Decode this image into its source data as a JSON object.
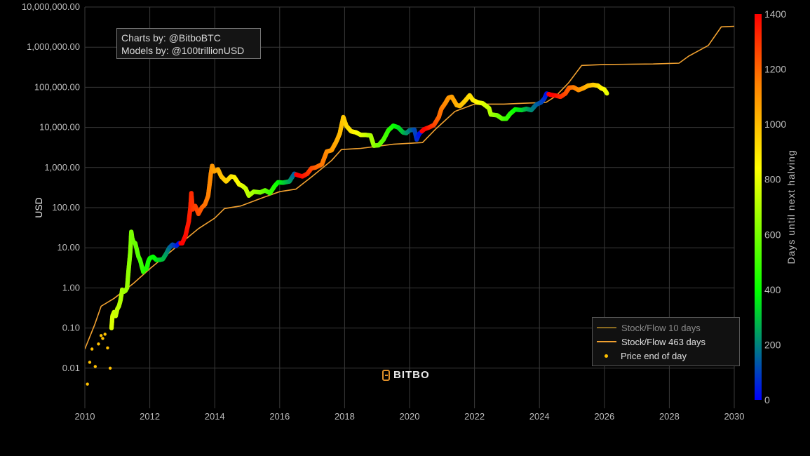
{
  "chart_data": {
    "type": "scatter",
    "title": "",
    "xlabel": "",
    "ylabel": "USD",
    "xlim": [
      2010,
      2030
    ],
    "ylim": [
      0.001,
      10000000
    ],
    "yscale": "log",
    "grid": true,
    "x_ticks": [
      "2010",
      "2012",
      "2014",
      "2016",
      "2018",
      "2020",
      "2022",
      "2024",
      "2026",
      "2028",
      "2030"
    ],
    "y_ticks": [
      "10,000,000.00",
      "1,000,000.00",
      "100,000.00",
      "10,000.00",
      "1,000.00",
      "100.00",
      "10.00",
      "1.00",
      "0.10",
      "0.01"
    ],
    "colorbar": {
      "title": "Days until next halving",
      "range": [
        0,
        1400
      ],
      "ticks": [
        "0",
        "200",
        "400",
        "600",
        "800",
        "1000",
        "1200",
        "1400"
      ],
      "colorscale": [
        "#0000ff",
        "#00ff00",
        "#ffff00",
        "#ff8000",
        "#ff0000"
      ]
    },
    "legend_position": "bottom-right",
    "annotations": [
      "Charts by: @BitboBTC",
      "Models by: @100trillionUSD"
    ],
    "watermark": "BITBO",
    "series": [
      {
        "name": "Stock/Flow 10 days",
        "color": "#8a6a20",
        "kind": "line",
        "points": [
          [
            2010.0,
            0.03
          ],
          [
            2010.3,
            0.12
          ],
          [
            2010.5,
            0.35
          ],
          [
            2010.9,
            0.55
          ],
          [
            2011.5,
            1.3
          ],
          [
            2012.0,
            3.0
          ],
          [
            2012.6,
            7.5
          ],
          [
            2012.9,
            12
          ],
          [
            2013.5,
            30
          ],
          [
            2014.0,
            55
          ],
          [
            2014.3,
            95
          ],
          [
            2014.8,
            110
          ],
          [
            2015.5,
            180
          ],
          [
            2016.0,
            250
          ],
          [
            2016.5,
            290
          ],
          [
            2017.0,
            600
          ],
          [
            2017.6,
            1500
          ],
          [
            2017.9,
            2800
          ],
          [
            2018.5,
            3000
          ],
          [
            2019.5,
            3800
          ],
          [
            2020.4,
            4200
          ],
          [
            2020.8,
            9000
          ],
          [
            2021.4,
            25000
          ],
          [
            2022.0,
            38000
          ],
          [
            2022.9,
            38000
          ],
          [
            2023.5,
            40000
          ],
          [
            2024.2,
            42000
          ],
          [
            2024.5,
            60000
          ],
          [
            2024.9,
            130000
          ],
          [
            2025.3,
            350000
          ],
          [
            2026.0,
            370000
          ],
          [
            2027.5,
            380000
          ],
          [
            2028.3,
            400000
          ],
          [
            2028.6,
            600000
          ],
          [
            2029.2,
            1100000
          ],
          [
            2029.6,
            3200000
          ],
          [
            2030.0,
            3300000
          ]
        ]
      },
      {
        "name": "Stock/Flow 463 days",
        "color": "#f0a030",
        "kind": "line",
        "points": [
          [
            2010.0,
            0.03
          ],
          [
            2010.3,
            0.12
          ],
          [
            2010.5,
            0.35
          ],
          [
            2010.9,
            0.55
          ],
          [
            2011.5,
            1.3
          ],
          [
            2012.0,
            3.0
          ],
          [
            2012.6,
            7.5
          ],
          [
            2012.9,
            12
          ],
          [
            2013.5,
            30
          ],
          [
            2014.0,
            55
          ],
          [
            2014.3,
            95
          ],
          [
            2014.8,
            110
          ],
          [
            2015.5,
            180
          ],
          [
            2016.0,
            250
          ],
          [
            2016.5,
            290
          ],
          [
            2017.0,
            600
          ],
          [
            2017.6,
            1500
          ],
          [
            2017.9,
            2800
          ],
          [
            2018.5,
            3000
          ],
          [
            2019.5,
            3800
          ],
          [
            2020.4,
            4200
          ],
          [
            2020.8,
            9000
          ],
          [
            2021.4,
            25000
          ],
          [
            2022.0,
            38000
          ],
          [
            2022.9,
            38000
          ],
          [
            2023.5,
            40000
          ],
          [
            2024.2,
            42000
          ],
          [
            2024.5,
            60000
          ],
          [
            2024.9,
            130000
          ],
          [
            2025.3,
            350000
          ],
          [
            2026.0,
            370000
          ],
          [
            2027.5,
            380000
          ],
          [
            2028.3,
            400000
          ],
          [
            2028.6,
            600000
          ],
          [
            2029.2,
            1100000
          ],
          [
            2029.6,
            3200000
          ],
          [
            2030.0,
            3300000
          ]
        ]
      },
      {
        "name": "Price end of day",
        "color": "#ffc000",
        "kind": "scatter",
        "points": [
          [
            2010.08,
            0.004,
            900
          ],
          [
            2010.15,
            0.014,
            880
          ],
          [
            2010.22,
            0.03,
            870
          ],
          [
            2010.32,
            0.011,
            860
          ],
          [
            2010.42,
            0.04,
            850
          ],
          [
            2010.5,
            0.065,
            840
          ],
          [
            2010.55,
            0.055,
            830
          ],
          [
            2010.62,
            0.07,
            820
          ],
          [
            2010.7,
            0.032,
            810
          ],
          [
            2010.78,
            0.01,
            800
          ],
          [
            2010.82,
            0.1,
            780
          ],
          [
            2010.85,
            0.2,
            770
          ],
          [
            2010.9,
            0.25,
            760
          ],
          [
            2010.95,
            0.2,
            750
          ],
          [
            2011.0,
            0.3,
            740
          ],
          [
            2011.05,
            0.35,
            720
          ],
          [
            2011.1,
            0.5,
            700
          ],
          [
            2011.15,
            0.9,
            690
          ],
          [
            2011.2,
            0.8,
            680
          ],
          [
            2011.25,
            0.85,
            670
          ],
          [
            2011.3,
            1.0,
            660
          ],
          [
            2011.35,
            3.0,
            640
          ],
          [
            2011.4,
            8.0,
            620
          ],
          [
            2011.43,
            25.0,
            610
          ],
          [
            2011.46,
            17.0,
            600
          ],
          [
            2011.5,
            14.0,
            590
          ],
          [
            2011.55,
            13.0,
            580
          ],
          [
            2011.6,
            9.0,
            560
          ],
          [
            2011.65,
            6.0,
            540
          ],
          [
            2011.7,
            5.0,
            520
          ],
          [
            2011.75,
            3.5,
            500
          ],
          [
            2011.8,
            2.5,
            480
          ],
          [
            2011.85,
            3.0,
            460
          ],
          [
            2011.9,
            3.0,
            440
          ],
          [
            2011.95,
            4.5,
            430
          ],
          [
            2012.0,
            5.5,
            420
          ],
          [
            2012.1,
            6.0,
            400
          ],
          [
            2012.2,
            5.0,
            380
          ],
          [
            2012.3,
            5.0,
            340
          ],
          [
            2012.4,
            5.2,
            300
          ],
          [
            2012.5,
            7.0,
            250
          ],
          [
            2012.6,
            10.0,
            180
          ],
          [
            2012.7,
            12.0,
            120
          ],
          [
            2012.8,
            11.0,
            80
          ],
          [
            2012.9,
            13.0,
            20
          ],
          [
            2013.0,
            13.0,
            1400
          ],
          [
            2013.1,
            20.0,
            1380
          ],
          [
            2013.2,
            45.0,
            1350
          ],
          [
            2013.25,
            100.0,
            1330
          ],
          [
            2013.28,
            230.0,
            1320
          ],
          [
            2013.32,
            90.0,
            1300
          ],
          [
            2013.4,
            110.0,
            1280
          ],
          [
            2013.5,
            70.0,
            1250
          ],
          [
            2013.6,
            100.0,
            1220
          ],
          [
            2013.7,
            120.0,
            1180
          ],
          [
            2013.8,
            200.0,
            1150
          ],
          [
            2013.88,
            700.0,
            1120
          ],
          [
            2013.92,
            1100.0,
            1100
          ],
          [
            2013.98,
            800.0,
            1080
          ],
          [
            2014.1,
            900.0,
            1050
          ],
          [
            2014.2,
            600.0,
            1000
          ],
          [
            2014.35,
            450.0,
            960
          ],
          [
            2014.5,
            600.0,
            920
          ],
          [
            2014.6,
            580.0,
            880
          ],
          [
            2014.75,
            380.0,
            840
          ],
          [
            2014.85,
            350.0,
            800
          ],
          [
            2014.95,
            300.0,
            760
          ],
          [
            2015.05,
            200.0,
            720
          ],
          [
            2015.2,
            250.0,
            680
          ],
          [
            2015.4,
            240.0,
            620
          ],
          [
            2015.55,
            270.0,
            570
          ],
          [
            2015.7,
            230.0,
            510
          ],
          [
            2015.85,
            350.0,
            450
          ],
          [
            2015.95,
            430.0,
            400
          ],
          [
            2016.1,
            420.0,
            340
          ],
          [
            2016.3,
            450.0,
            260
          ],
          [
            2016.45,
            700.0,
            150
          ],
          [
            2016.55,
            650.0,
            1420
          ],
          [
            2016.7,
            600.0,
            1380
          ],
          [
            2016.85,
            700.0,
            1320
          ],
          [
            2016.98,
            960.0,
            1260
          ],
          [
            2017.1,
            1000.0,
            1220
          ],
          [
            2017.3,
            1200.0,
            1170
          ],
          [
            2017.45,
            2500.0,
            1130
          ],
          [
            2017.6,
            2700.0,
            1090
          ],
          [
            2017.75,
            4500.0,
            1050
          ],
          [
            2017.85,
            7000.0,
            1010
          ],
          [
            2017.96,
            18000.0,
            980
          ],
          [
            2018.05,
            11000.0,
            950
          ],
          [
            2018.2,
            8000.0,
            900
          ],
          [
            2018.35,
            7500.0,
            860
          ],
          [
            2018.5,
            6500.0,
            800
          ],
          [
            2018.65,
            6500.0,
            760
          ],
          [
            2018.8,
            6300.0,
            700
          ],
          [
            2018.9,
            3500.0,
            660
          ],
          [
            2019.05,
            3600.0,
            600
          ],
          [
            2019.2,
            5000.0,
            540
          ],
          [
            2019.35,
            8500.0,
            480
          ],
          [
            2019.5,
            11000.0,
            420
          ],
          [
            2019.65,
            10000.0,
            360
          ],
          [
            2019.8,
            7500.0,
            300
          ],
          [
            2019.9,
            7200.0,
            250
          ],
          [
            2020.0,
            8500.0,
            200
          ],
          [
            2020.15,
            8800.0,
            120
          ],
          [
            2020.22,
            5000.0,
            80
          ],
          [
            2020.3,
            7000.0,
            30
          ],
          [
            2020.45,
            9000.0,
            1420
          ],
          [
            2020.6,
            10000.0,
            1350
          ],
          [
            2020.75,
            11500.0,
            1280
          ],
          [
            2020.9,
            18000.0,
            1200
          ],
          [
            2020.98,
            29000.0,
            1170
          ],
          [
            2021.1,
            40000.0,
            1130
          ],
          [
            2021.2,
            55000.0,
            1100
          ],
          [
            2021.3,
            58000.0,
            1080
          ],
          [
            2021.45,
            36000.0,
            1040
          ],
          [
            2021.55,
            34000.0,
            1010
          ],
          [
            2021.7,
            45000.0,
            970
          ],
          [
            2021.85,
            63000.0,
            930
          ],
          [
            2021.95,
            48000.0,
            900
          ],
          [
            2022.1,
            42000.0,
            860
          ],
          [
            2022.25,
            40000.0,
            800
          ],
          [
            2022.45,
            30000.0,
            740
          ],
          [
            2022.5,
            21000.0,
            700
          ],
          [
            2022.7,
            20000.0,
            620
          ],
          [
            2022.85,
            16500.0,
            560
          ],
          [
            2022.98,
            16500.0,
            500
          ],
          [
            2023.1,
            22000.0,
            460
          ],
          [
            2023.25,
            28000.0,
            400
          ],
          [
            2023.45,
            27000.0,
            340
          ],
          [
            2023.6,
            29000.0,
            280
          ],
          [
            2023.75,
            27000.0,
            220
          ],
          [
            2023.9,
            37000.0,
            160
          ],
          [
            2024.05,
            42000.0,
            120
          ],
          [
            2024.15,
            52000.0,
            80
          ],
          [
            2024.22,
            70000.0,
            30
          ],
          [
            2024.35,
            65000.0,
            1420
          ],
          [
            2024.5,
            62000.0,
            1380
          ],
          [
            2024.65,
            58000.0,
            1320
          ],
          [
            2024.8,
            70000.0,
            1260
          ],
          [
            2024.92,
            98000.0,
            1210
          ],
          [
            2025.05,
            100000.0,
            1170
          ],
          [
            2025.2,
            85000.0,
            1120
          ],
          [
            2025.35,
            95000.0,
            1070
          ],
          [
            2025.5,
            110000.0,
            1020
          ],
          [
            2025.65,
            115000.0,
            980
          ],
          [
            2025.8,
            110000.0,
            930
          ],
          [
            2025.9,
            95000.0,
            880
          ],
          [
            2026.0,
            88000.0,
            840
          ],
          [
            2026.08,
            70000.0,
            800
          ]
        ]
      }
    ]
  },
  "credits": {
    "line1": "Charts by: @BitboBTC",
    "line2": "Models by: @100trillionUSD"
  },
  "brand": {
    "name": "BITBO"
  }
}
